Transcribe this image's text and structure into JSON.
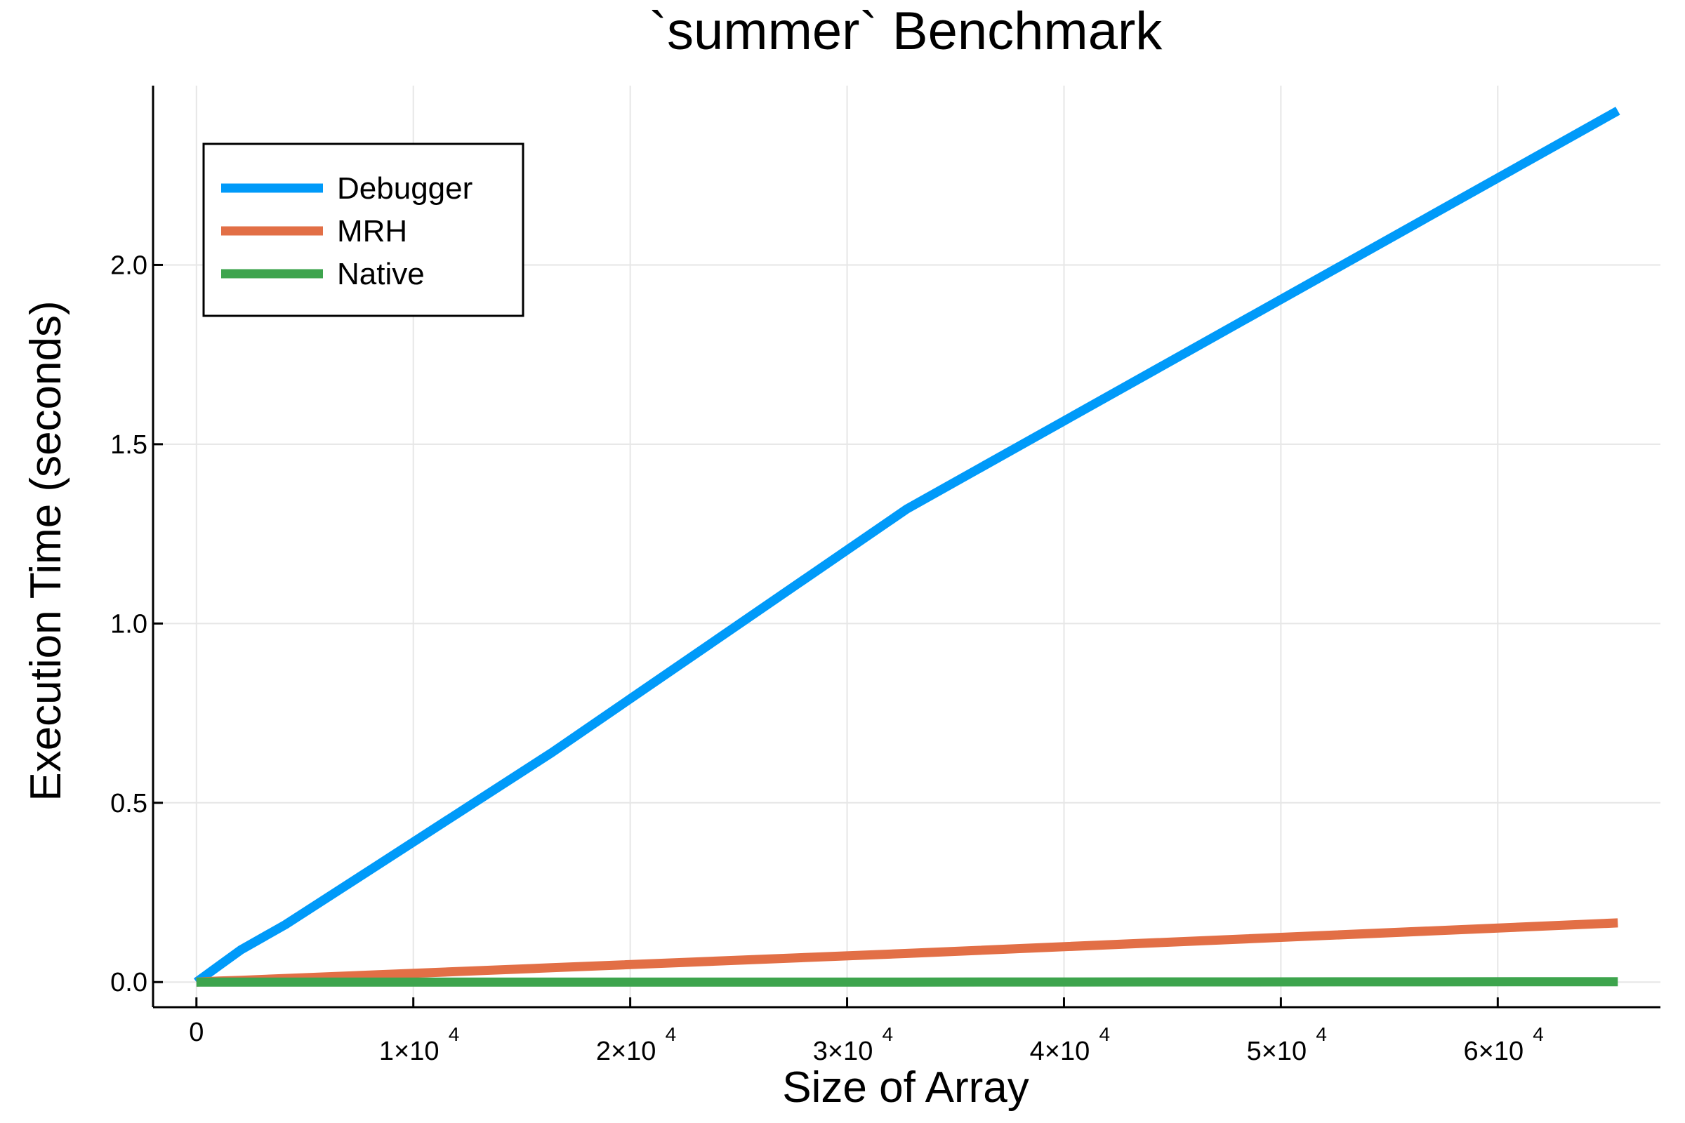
{
  "chart_data": {
    "type": "line",
    "title": "`summer` Benchmark",
    "xlabel": "Size of Array",
    "ylabel": "Execution Time (seconds)",
    "xlim": [
      -2000,
      67500
    ],
    "ylim": [
      -0.07,
      2.5
    ],
    "grid": true,
    "legend_position": "top-left",
    "x_ticks": [
      {
        "value": 0,
        "label": "0",
        "exp": ""
      },
      {
        "value": 10000,
        "label": "1×10",
        "exp": "4"
      },
      {
        "value": 20000,
        "label": "2×10",
        "exp": "4"
      },
      {
        "value": 30000,
        "label": "3×10",
        "exp": "4"
      },
      {
        "value": 40000,
        "label": "4×10",
        "exp": "4"
      },
      {
        "value": 50000,
        "label": "5×10",
        "exp": "4"
      },
      {
        "value": 60000,
        "label": "6×10",
        "exp": "4"
      }
    ],
    "y_ticks": [
      {
        "value": 0.0,
        "label": "0.0"
      },
      {
        "value": 0.5,
        "label": "0.5"
      },
      {
        "value": 1.0,
        "label": "1.0"
      },
      {
        "value": 1.5,
        "label": "1.5"
      },
      {
        "value": 2.0,
        "label": "2.0"
      }
    ],
    "series": [
      {
        "name": "Debugger",
        "color": "#009af9",
        "x": [
          0,
          1024,
          2048,
          4096,
          8192,
          16384,
          32768,
          65536
        ],
        "y": [
          0.0,
          0.045,
          0.09,
          0.16,
          0.32,
          0.64,
          1.32,
          2.43
        ]
      },
      {
        "name": "MRH",
        "color": "#e26f46",
        "x": [
          0,
          1024,
          2048,
          4096,
          8192,
          16384,
          32768,
          65536
        ],
        "y": [
          0.0,
          0.003,
          0.005,
          0.01,
          0.02,
          0.04,
          0.08,
          0.165
        ]
      },
      {
        "name": "Native",
        "color": "#3da44d",
        "x": [
          0,
          1024,
          2048,
          4096,
          8192,
          16384,
          32768,
          65536
        ],
        "y": [
          0.0,
          0.0,
          0.0,
          0.0,
          0.0,
          0.0,
          0.0,
          0.001
        ]
      }
    ]
  }
}
